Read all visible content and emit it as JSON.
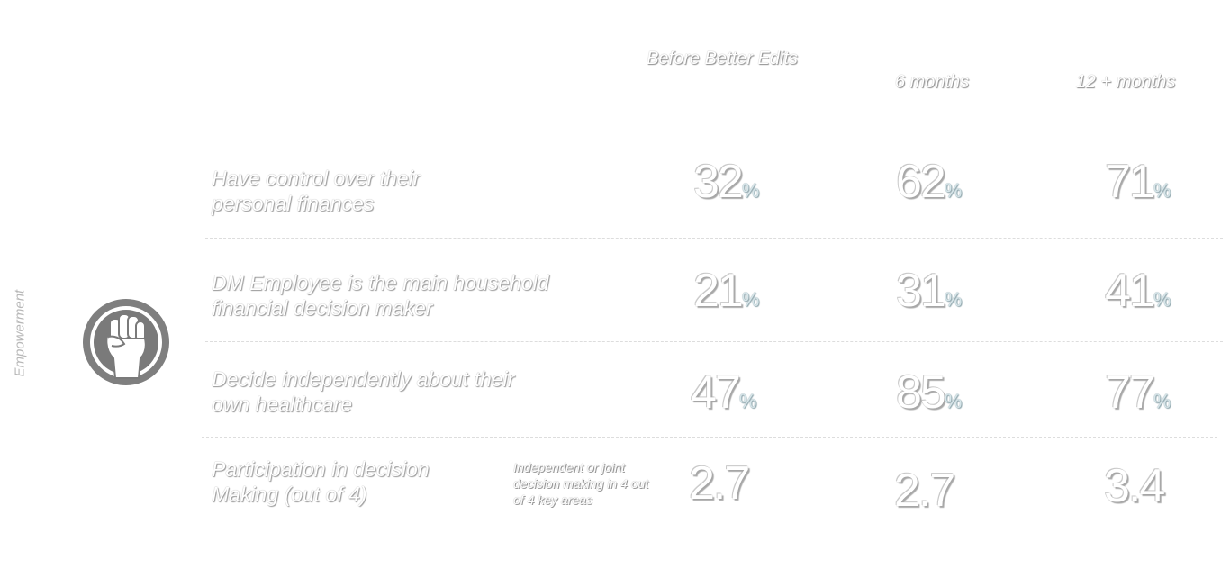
{
  "side_label": "Empowerment",
  "icon": "raised-fist-icon",
  "headers": [
    "Before Better Edits",
    "6 months",
    "12 + months"
  ],
  "rows": [
    {
      "label": "Have control over their personal finances",
      "values": [
        "32",
        "62",
        "71"
      ],
      "unit": "%"
    },
    {
      "label": "DM Employee is the main household financial decision maker",
      "values": [
        "21",
        "31",
        "41"
      ],
      "unit": "%"
    },
    {
      "label": "Decide independently about their own healthcare",
      "values": [
        "47",
        "85",
        "77"
      ],
      "unit": "%"
    },
    {
      "label": "Participation in decision Making (out of 4)",
      "note": "Independent or joint decision making in 4 out of 4 key areas",
      "values": [
        "2.7",
        "2.7",
        "3.4"
      ],
      "unit": ""
    }
  ]
}
